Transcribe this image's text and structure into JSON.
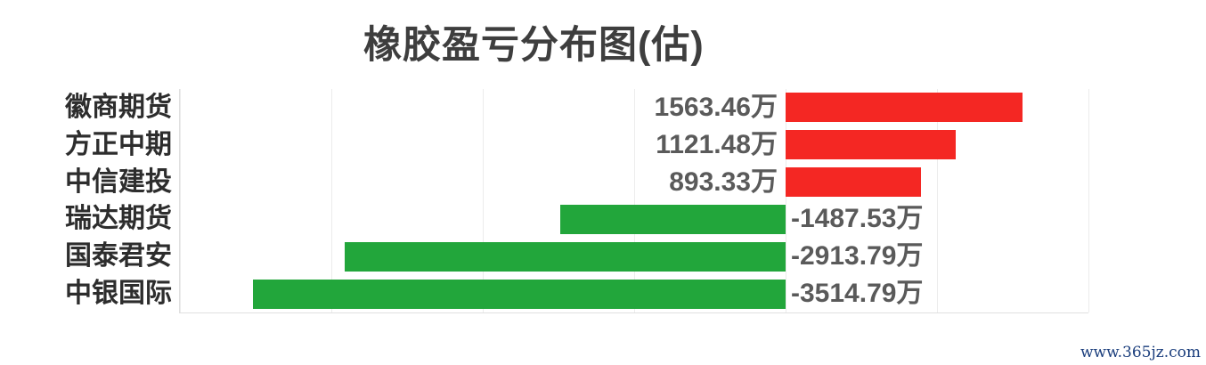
{
  "chart_data": {
    "type": "bar",
    "orientation": "horizontal",
    "title": "橡胶盈亏分布图(估)",
    "categories": [
      "徽商期货",
      "方正中期",
      "中信建投",
      "瑞达期货",
      "国泰君安",
      "中银国际"
    ],
    "values": [
      1563.46,
      1121.48,
      893.33,
      -1487.53,
      -2913.79,
      -3514.79
    ],
    "value_labels": [
      "1563.46万",
      "1121.48万",
      "893.33万",
      "-1487.53万",
      "-2913.79万",
      "-3514.79万"
    ],
    "unit": "万",
    "xlim": [
      -4000,
      2000
    ],
    "tick_step": 1000,
    "grid": true,
    "legend": false,
    "colors": {
      "positive_bar": "#f42723",
      "negative_bar": "#22a63b",
      "grid_line": "#ececec",
      "axis_line": "#e0e0e0",
      "title_text": "#3e3e3e",
      "category_text": "#2d2d2d",
      "value_text": "#5a5a5a"
    }
  },
  "watermark": {
    "text": "www.365jz.com",
    "color": "#1a3d7c"
  }
}
